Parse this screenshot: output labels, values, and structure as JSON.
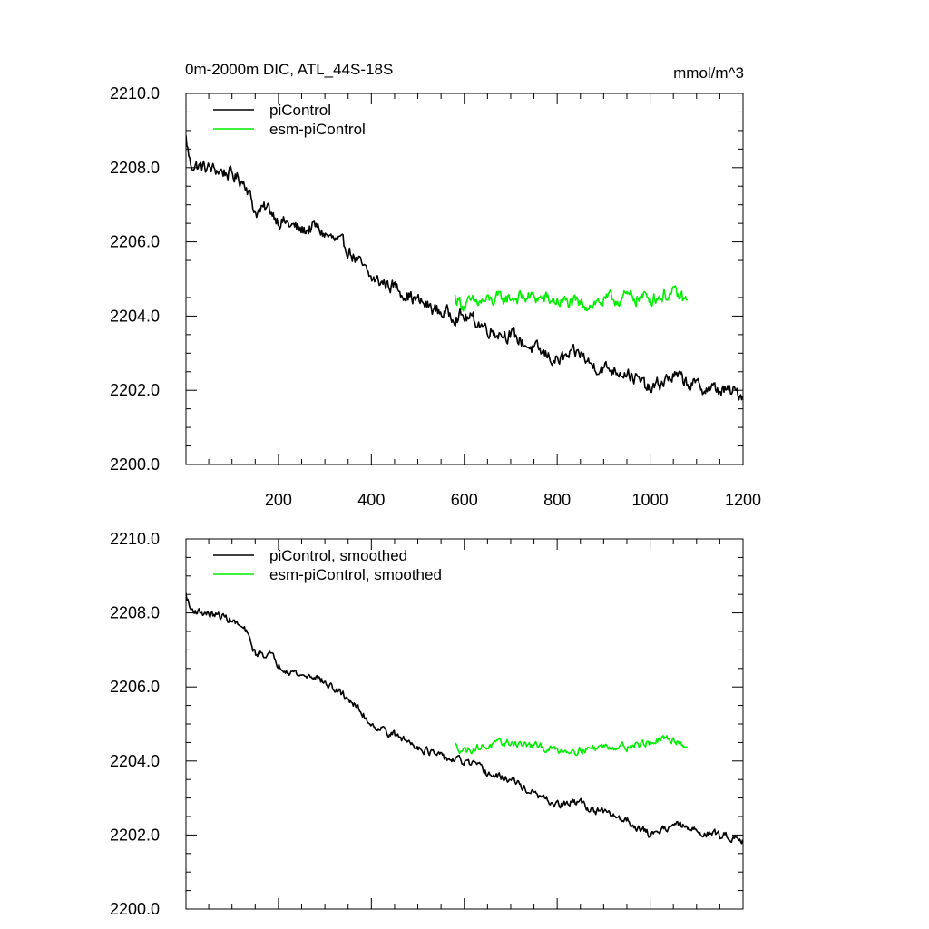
{
  "figure": {
    "title": "0m-2000m DIC, ATL_44S-18S",
    "units": "mmol/m^3"
  },
  "colors": {
    "picontrol": "#000000",
    "esm_picontrol": "#00ee00",
    "axis": "#000000"
  },
  "chart_data": [
    {
      "type": "line",
      "panel": "top",
      "title": "0m-2000m DIC, ATL_44S-18S",
      "units_label": "mmol/m^3",
      "xlim": [
        1,
        1200
      ],
      "ylim": [
        2200.0,
        2210.0
      ],
      "x_ticks": [
        200,
        400,
        600,
        800,
        1000,
        1200
      ],
      "x_tick_labels": [
        "200",
        "400",
        "600",
        "800",
        "1000",
        "1200"
      ],
      "y_ticks": [
        2200.0,
        2202.0,
        2204.0,
        2206.0,
        2208.0,
        2210.0
      ],
      "y_tick_labels": [
        "2200.0",
        "2202.0",
        "2204.0",
        "2206.0",
        "2208.0",
        "2210.0"
      ],
      "legend_position": "top-left",
      "series": [
        {
          "name": "piControl",
          "color": "#000000",
          "x": [
            1,
            10,
            40,
            80,
            100,
            130,
            150,
            180,
            200,
            250,
            280,
            300,
            350,
            400,
            450,
            500,
            550,
            590,
            620,
            660,
            700,
            750,
            800,
            850,
            870,
            900,
            950,
            1000,
            1050,
            1100,
            1150,
            1200
          ],
          "values": [
            2208.8,
            2208.1,
            2208.0,
            2207.9,
            2207.8,
            2207.6,
            2206.8,
            2206.9,
            2206.6,
            2206.3,
            2206.4,
            2206.2,
            2205.8,
            2205.0,
            2204.8,
            2204.4,
            2204.1,
            2204.0,
            2203.9,
            2203.6,
            2203.5,
            2203.1,
            2202.8,
            2203.0,
            2202.7,
            2202.6,
            2202.5,
            2202.0,
            2202.4,
            2202.1,
            2202.0,
            2201.9
          ],
          "noise": 0.22
        },
        {
          "name": "esm-piControl",
          "color": "#00ee00",
          "x": [
            580,
            600,
            650,
            700,
            750,
            800,
            850,
            900,
            950,
            1000,
            1050,
            1080
          ],
          "values": [
            2204.5,
            2204.3,
            2204.4,
            2204.5,
            2204.5,
            2204.4,
            2204.3,
            2204.4,
            2204.5,
            2204.5,
            2204.6,
            2204.4
          ],
          "noise": 0.22
        }
      ]
    },
    {
      "type": "line",
      "panel": "bottom",
      "xlim": [
        1,
        1200
      ],
      "ylim": [
        2200.0,
        2210.0
      ],
      "x_ticks": [
        200,
        400,
        600,
        800,
        1000,
        1200
      ],
      "y_ticks": [
        2200.0,
        2202.0,
        2204.0,
        2206.0,
        2208.0,
        2210.0
      ],
      "y_tick_labels": [
        "2200.0",
        "2202.0",
        "2204.0",
        "2206.0",
        "2208.0",
        "2210.0"
      ],
      "legend_position": "top-left",
      "series": [
        {
          "name": "piControl, smoothed",
          "color": "#000000",
          "x": [
            1,
            10,
            40,
            80,
            100,
            130,
            150,
            180,
            200,
            250,
            280,
            300,
            350,
            400,
            450,
            500,
            550,
            590,
            620,
            660,
            700,
            750,
            800,
            850,
            870,
            900,
            950,
            1000,
            1050,
            1100,
            1150,
            1200
          ],
          "values": [
            2208.5,
            2208.1,
            2208.0,
            2207.9,
            2207.8,
            2207.5,
            2206.9,
            2206.9,
            2206.6,
            2206.3,
            2206.3,
            2206.1,
            2205.7,
            2205.0,
            2204.7,
            2204.4,
            2204.1,
            2204.0,
            2203.9,
            2203.6,
            2203.5,
            2203.1,
            2202.8,
            2202.9,
            2202.7,
            2202.6,
            2202.4,
            2202.0,
            2202.3,
            2202.1,
            2202.0,
            2201.9
          ],
          "noise": 0.12
        },
        {
          "name": "esm-piControl, smoothed",
          "color": "#00ee00",
          "x": [
            580,
            600,
            650,
            700,
            750,
            800,
            850,
            900,
            950,
            1000,
            1050,
            1080
          ],
          "values": [
            2204.4,
            2204.3,
            2204.4,
            2204.5,
            2204.4,
            2204.3,
            2204.3,
            2204.4,
            2204.4,
            2204.5,
            2204.6,
            2204.4
          ],
          "noise": 0.12
        }
      ]
    }
  ]
}
